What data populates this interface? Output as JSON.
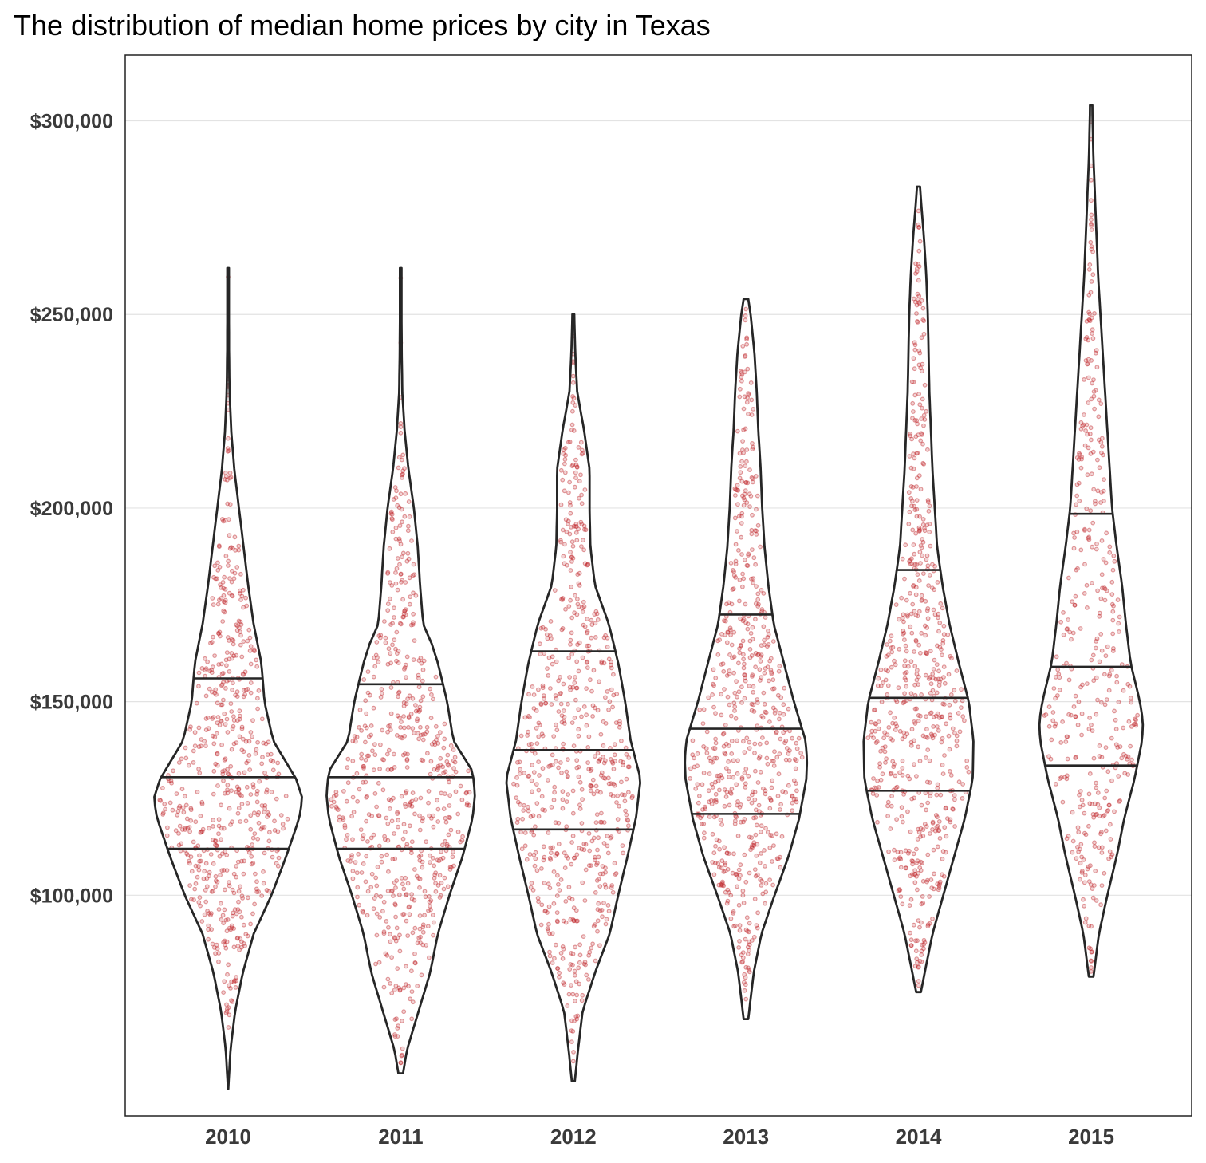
{
  "chart_data": {
    "type": "violin",
    "title": "The distribution of median home prices by city in Texas",
    "xlabel": "",
    "ylabel": "",
    "categories": [
      "2010",
      "2011",
      "2012",
      "2013",
      "2014",
      "2015"
    ],
    "yticks": [
      {
        "value": 100000,
        "label": "$100,000"
      },
      {
        "value": 150000,
        "label": "$150,000"
      },
      {
        "value": 200000,
        "label": "$200,000"
      },
      {
        "value": 250000,
        "label": "$250,000"
      },
      {
        "value": 300000,
        "label": "$300,000"
      }
    ],
    "ylim": [
      43000,
      317000
    ],
    "grid": true,
    "legend": "none",
    "point_color": "#c0282d",
    "series": [
      {
        "category": "2010",
        "min": 50000,
        "max": 262000,
        "q1": 112000,
        "median": 130500,
        "q3": 156000,
        "n_points": 600,
        "density": [
          [
            50000,
            0.2
          ],
          [
            60000,
            3
          ],
          [
            70000,
            9
          ],
          [
            80000,
            19
          ],
          [
            90000,
            33
          ],
          [
            100000,
            56
          ],
          [
            110000,
            75
          ],
          [
            120000,
            92
          ],
          [
            125000,
            96
          ],
          [
            130000,
            88
          ],
          [
            140000,
            58
          ],
          [
            150000,
            47
          ],
          [
            160000,
            43
          ],
          [
            170000,
            33
          ],
          [
            180000,
            26
          ],
          [
            190000,
            20
          ],
          [
            200000,
            14
          ],
          [
            210000,
            8
          ],
          [
            220000,
            4
          ],
          [
            230000,
            1.8
          ],
          [
            240000,
            1.2
          ],
          [
            250000,
            1
          ],
          [
            262000,
            1
          ]
        ]
      },
      {
        "category": "2011",
        "min": 54000,
        "max": 262000,
        "q1": 112000,
        "median": 130500,
        "q3": 154500,
        "n_points": 620,
        "density": [
          [
            54000,
            3
          ],
          [
            60000,
            8
          ],
          [
            70000,
            23
          ],
          [
            80000,
            38
          ],
          [
            90000,
            48
          ],
          [
            100000,
            63
          ],
          [
            110000,
            80
          ],
          [
            120000,
            93
          ],
          [
            126000,
            96
          ],
          [
            132000,
            93
          ],
          [
            140000,
            68
          ],
          [
            150000,
            60
          ],
          [
            160000,
            48
          ],
          [
            165000,
            40
          ],
          [
            170000,
            29
          ],
          [
            180000,
            25
          ],
          [
            190000,
            22
          ],
          [
            200000,
            17
          ],
          [
            210000,
            10
          ],
          [
            220000,
            5
          ],
          [
            230000,
            2
          ],
          [
            240000,
            1.3
          ],
          [
            250000,
            1
          ],
          [
            262000,
            1
          ]
        ]
      },
      {
        "category": "2012",
        "min": 52000,
        "max": 250000,
        "q1": 117000,
        "median": 137500,
        "q3": 163000,
        "n_points": 640,
        "density": [
          [
            52000,
            2
          ],
          [
            60000,
            6
          ],
          [
            70000,
            12
          ],
          [
            80000,
            28
          ],
          [
            90000,
            47
          ],
          [
            100000,
            58
          ],
          [
            110000,
            70
          ],
          [
            120000,
            81
          ],
          [
            130000,
            87
          ],
          [
            140000,
            74
          ],
          [
            150000,
            67
          ],
          [
            160000,
            58
          ],
          [
            170000,
            46
          ],
          [
            180000,
            28
          ],
          [
            190000,
            22
          ],
          [
            200000,
            21
          ],
          [
            210000,
            21
          ],
          [
            220000,
            14
          ],
          [
            230000,
            5
          ],
          [
            240000,
            2.5
          ],
          [
            250000,
            1.2
          ]
        ]
      },
      {
        "category": "2013",
        "min": 68000,
        "max": 254000,
        "q1": 121000,
        "median": 143000,
        "q3": 172500,
        "n_points": 620,
        "density": [
          [
            68000,
            3
          ],
          [
            80000,
            10
          ],
          [
            90000,
            20
          ],
          [
            100000,
            37
          ],
          [
            110000,
            55
          ],
          [
            120000,
            69
          ],
          [
            130000,
            78
          ],
          [
            135000,
            79
          ],
          [
            140000,
            77
          ],
          [
            150000,
            62
          ],
          [
            160000,
            49
          ],
          [
            170000,
            36
          ],
          [
            180000,
            29
          ],
          [
            190000,
            24
          ],
          [
            200000,
            21
          ],
          [
            210000,
            19
          ],
          [
            220000,
            16
          ],
          [
            230000,
            14
          ],
          [
            240000,
            11
          ],
          [
            250000,
            6
          ],
          [
            254000,
            3
          ]
        ]
      },
      {
        "category": "2014",
        "min": 75000,
        "max": 283000,
        "q1": 127000,
        "median": 151000,
        "q3": 184000,
        "n_points": 600,
        "density": [
          [
            75000,
            3
          ],
          [
            80000,
            8
          ],
          [
            90000,
            18
          ],
          [
            100000,
            32
          ],
          [
            110000,
            46
          ],
          [
            120000,
            60
          ],
          [
            130000,
            70
          ],
          [
            140000,
            71
          ],
          [
            150000,
            65
          ],
          [
            160000,
            52
          ],
          [
            170000,
            40
          ],
          [
            180000,
            31
          ],
          [
            190000,
            24
          ],
          [
            200000,
            21
          ],
          [
            210000,
            18
          ],
          [
            220000,
            16
          ],
          [
            230000,
            14
          ],
          [
            240000,
            13
          ],
          [
            250000,
            12
          ],
          [
            260000,
            10
          ],
          [
            270000,
            7
          ],
          [
            280000,
            3
          ],
          [
            283000,
            2
          ]
        ]
      },
      {
        "category": "2015",
        "min": 79000,
        "max": 304000,
        "q1": 133500,
        "median": 159000,
        "q3": 198500,
        "n_points": 400,
        "density": [
          [
            79000,
            3
          ],
          [
            90000,
            10
          ],
          [
            100000,
            21
          ],
          [
            110000,
            33
          ],
          [
            120000,
            43
          ],
          [
            130000,
            56
          ],
          [
            140000,
            66
          ],
          [
            145000,
            67
          ],
          [
            150000,
            63
          ],
          [
            160000,
            51
          ],
          [
            170000,
            45
          ],
          [
            180000,
            40
          ],
          [
            190000,
            33
          ],
          [
            200000,
            27
          ],
          [
            210000,
            24
          ],
          [
            220000,
            21
          ],
          [
            230000,
            18
          ],
          [
            240000,
            15
          ],
          [
            250000,
            12
          ],
          [
            260000,
            9
          ],
          [
            270000,
            7
          ],
          [
            280000,
            5
          ],
          [
            290000,
            3
          ],
          [
            300000,
            1.8
          ],
          [
            304000,
            1.5
          ]
        ]
      }
    ]
  }
}
